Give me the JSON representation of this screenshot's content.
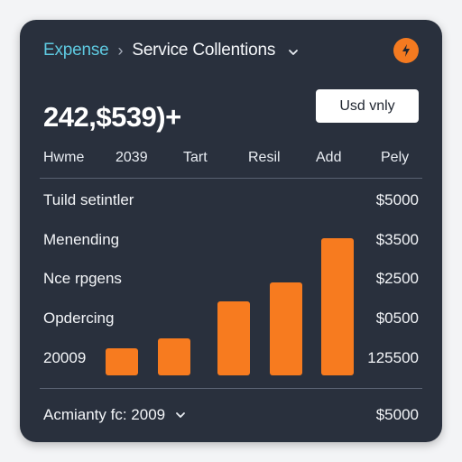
{
  "breadcrumb": {
    "parent": "Expense",
    "separator": "›",
    "current": "Service Collentions"
  },
  "icons": {
    "breadcrumb_dropdown": "chevron-down-icon",
    "alert": "lightning-icon",
    "footer_dropdown": "chevron-down-icon"
  },
  "header": {
    "total": "242,$539)+",
    "currency_button": "Usd vnly"
  },
  "tabs": [
    "Hwme",
    "2039",
    "Tart",
    "Resil",
    "Add",
    "Pely"
  ],
  "rows": [
    {
      "label": "Tuild setintler",
      "value": "$5000"
    },
    {
      "label": "Menending",
      "value": "$3500"
    },
    {
      "label": "Nce rpgens",
      "value": "$2500"
    },
    {
      "label": "Opdercing",
      "value": "$0500"
    },
    {
      "label": "20009",
      "value": "125500"
    }
  ],
  "chart_data": {
    "type": "bar",
    "bar_levels": [
      0.2,
      0.27,
      0.54,
      0.68,
      1.0
    ]
  },
  "footer": {
    "label": "Acmianty fc: 2009",
    "value": "$5000"
  },
  "colors": {
    "card_background": "#29303d",
    "accent": "#f77b1f",
    "breadcrumb_link": "#5ec9e0",
    "alert_badge": "#f47a20"
  }
}
